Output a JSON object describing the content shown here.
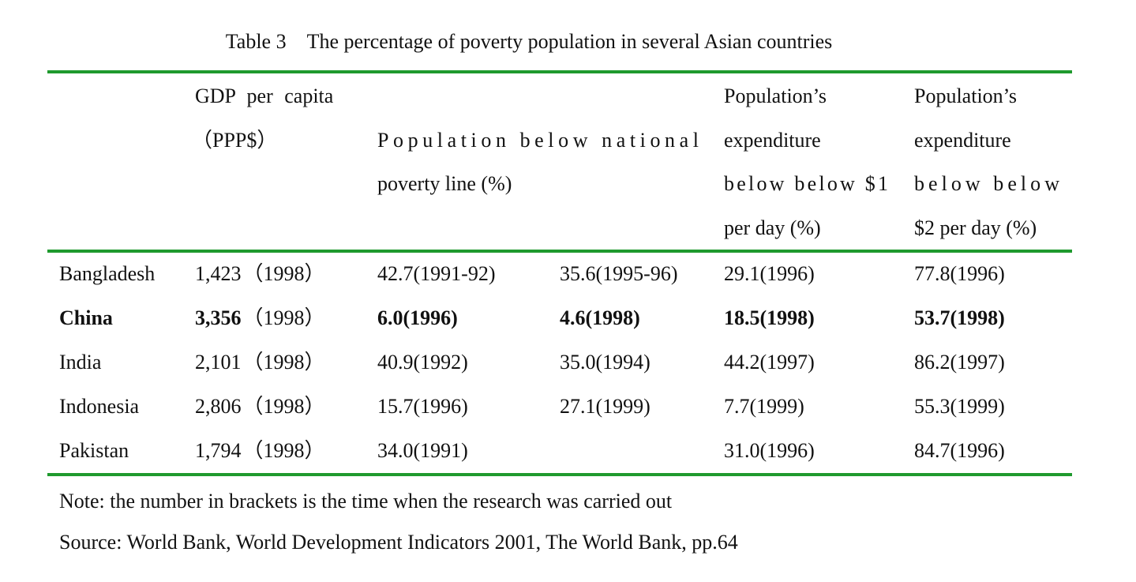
{
  "title": "Table 3 The percentage of poverty population in several Asian countries",
  "header": [
    [
      "GDP per capita",
      "（PPP$）"
    ],
    [
      "Population below national",
      "poverty line (%)"
    ],
    [
      "Population’s",
      "expenditure",
      "below below $1",
      "per day (%)"
    ],
    [
      "Population’s",
      "expenditure",
      "below below",
      "$2 per day (%)"
    ]
  ],
  "rows": [
    {
      "cells": [
        "Bangladesh",
        "1,423",
        "（1998）",
        "42.7(1991-92)",
        "35.6(1995-96)",
        "29.1(1996)",
        "77.8(1996)"
      ],
      "bold": false
    },
    {
      "cells": [
        "China",
        "3,356",
        "（1998）",
        "6.0(1996)",
        "4.6(1998)",
        "18.5(1998)",
        "53.7(1998)"
      ],
      "bold": true
    },
    {
      "cells": [
        "India",
        "2,101",
        "（1998）",
        "40.9(1992)",
        "35.0(1994)",
        "44.2(1997)",
        "86.2(1997)"
      ],
      "bold": false
    },
    {
      "cells": [
        "Indonesia",
        "2,806",
        "（1998）",
        "15.7(1996)",
        "27.1(1999)",
        "7.7(1999)",
        "55.3(1999)"
      ],
      "bold": false
    },
    {
      "cells": [
        "Pakistan",
        "1,794",
        "（1998）",
        "34.0(1991)",
        null,
        "31.0(1996)",
        "84.7(1996)"
      ],
      "bold": false
    }
  ],
  "notes": [
    "Note: the number in brackets is the time when the research was carried out",
    "Source: World Bank, World Development Indicators 2001, The World Bank, pp.64"
  ]
}
